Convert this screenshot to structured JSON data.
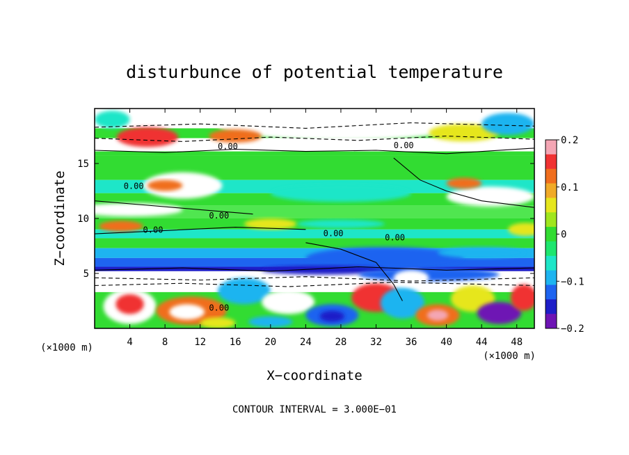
{
  "chart_data": {
    "type": "heatmap",
    "title": "disturbunce of potential temperature",
    "xlabel": "X−coordinate",
    "ylabel": "Z−coordinate",
    "x_unit": "(×1000 m)",
    "y_unit": "(×1000 m)",
    "xlim": [
      0,
      50
    ],
    "ylim": [
      0,
      20
    ],
    "x_ticks": [
      4,
      8,
      12,
      16,
      20,
      24,
      28,
      32,
      36,
      40,
      44,
      48
    ],
    "x_tick_labels": [
      "4",
      "8",
      "12",
      "16",
      "20",
      "24",
      "28",
      "32",
      "36",
      "40",
      "44",
      "48"
    ],
    "y_ticks": [
      5,
      10,
      15
    ],
    "y_tick_labels": [
      "5",
      "10",
      "15"
    ],
    "colorbar": {
      "min": -0.2,
      "max": 0.2,
      "tick_values": [
        0.2,
        0.1,
        0,
        -0.1,
        -0.2
      ],
      "tick_labels": [
        "0.2",
        "0.1",
        "0",
        "−0.1",
        "−0.2"
      ],
      "colors": [
        "#f4a6b4",
        "#f03232",
        "#f06e1e",
        "#f0aa28",
        "#e6e61e",
        "#a0e61e",
        "#32dc32",
        "#1ee66e",
        "#1ee6c8",
        "#1eb4f0",
        "#1e64f0",
        "#1e1ec8",
        "#6e14b4"
      ]
    },
    "contour_labels": [
      "0.00",
      "0.00",
      "0.00",
      "0.00",
      "0.00",
      "0.00",
      "0.00",
      "0.00"
    ],
    "contour_interval_text": "CONTOUR INTERVAL = 3.000E−01",
    "grid": false
  },
  "colors": {
    "white": "#ffffff",
    "green": "#32dc32",
    "lime": "#50e650",
    "cyan": "#1ee6c8",
    "sky": "#1eb4f0",
    "blue": "#1e64f0",
    "navy": "#1e1ec8",
    "purple": "#6e14b4",
    "red": "#f03232",
    "orange": "#f06e1e",
    "yellow": "#e6e61e",
    "pink": "#f4a6b4"
  }
}
